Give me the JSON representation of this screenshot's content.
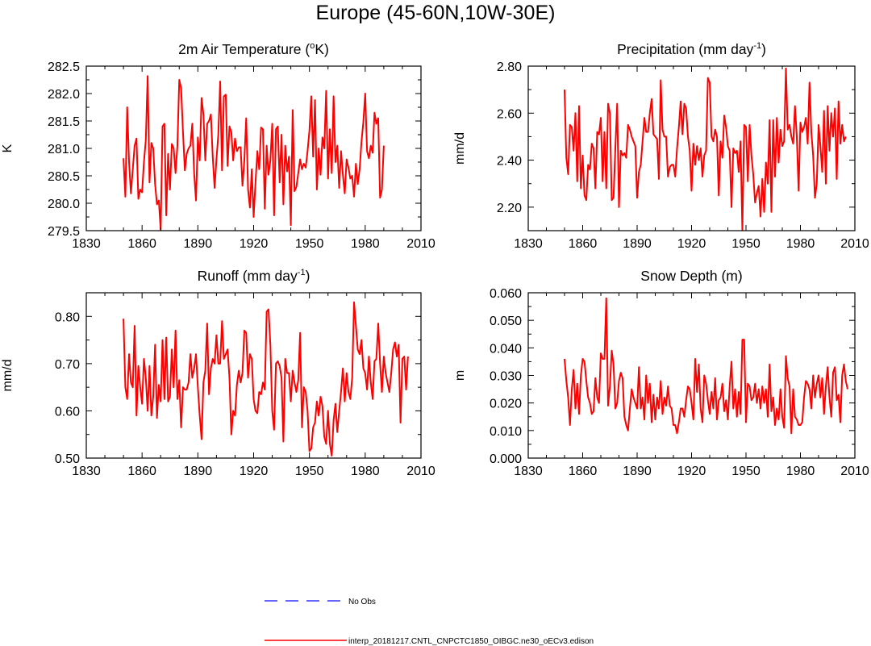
{
  "figure_title": "Europe (45-60N,10W-30E)",
  "chart_data": [
    {
      "type": "line",
      "title": "2m Air Temperature (°K)",
      "title_parts": {
        "pre": "2m Air Temperature (",
        "sup": "o",
        "post": "K)"
      },
      "xlabel": "",
      "ylabel": "K",
      "xlim": [
        1830,
        2010
      ],
      "ylim": [
        279.5,
        282.5
      ],
      "xticks": [
        1830,
        1860,
        1890,
        1920,
        1950,
        1980,
        2010
      ],
      "xtick_labels": [
        "1830",
        "1860",
        "1890",
        "1920",
        "1950",
        "1980",
        "2010"
      ],
      "yticks": [
        279.5,
        280.0,
        280.5,
        281.0,
        281.5,
        282.0,
        282.5
      ],
      "ytick_labels": [
        "279.5",
        "280.0",
        "280.5",
        "281.0",
        "281.5",
        "282.0",
        "282.5"
      ],
      "grid": false,
      "series": [
        {
          "name": "interp_20181217.CNTL_CNPCTC1850_OIBGC.ne30_oECv3.edison",
          "color": "#ff0000",
          "x_start": 1850,
          "x_step": 1,
          "values": [
            280.82,
            280.12,
            281.75,
            280.75,
            280.18,
            280.62,
            281.05,
            281.18,
            280.08,
            280.25,
            280.2,
            280.75,
            281.15,
            282.32,
            280.38,
            281.1,
            281.0,
            280.35,
            279.98,
            280.05,
            279.52,
            281.4,
            281.45,
            279.78,
            280.9,
            280.25,
            281.08,
            281.0,
            280.55,
            281.05,
            282.25,
            282.1,
            281.3,
            280.6,
            280.9,
            281.0,
            281.05,
            281.45,
            280.55,
            280.05,
            281.2,
            280.78,
            281.92,
            281.62,
            280.78,
            281.45,
            281.5,
            281.62,
            280.85,
            280.28,
            280.8,
            281.25,
            282.22,
            280.6,
            281.95,
            281.98,
            280.68,
            281.4,
            281.3,
            280.78,
            281.18,
            280.95,
            281.02,
            281.02,
            280.32,
            280.78,
            281.55,
            280.25,
            279.92,
            280.62,
            279.75,
            280.38,
            280.95,
            280.62,
            281.38,
            281.35,
            279.9,
            281.05,
            280.52,
            280.78,
            281.45,
            279.78,
            281.35,
            281.4,
            280.38,
            281.25,
            279.98,
            281.05,
            280.58,
            280.85,
            279.6,
            281.7,
            280.22,
            280.3,
            280.55,
            280.8,
            280.62,
            280.72,
            280.65,
            280.95,
            281.32,
            281.95,
            280.85,
            281.88,
            280.25,
            281.0,
            280.52,
            281.2,
            281.0,
            282.05,
            280.45,
            281.35,
            280.55,
            281.95,
            280.75,
            281.05,
            280.28,
            280.95,
            280.52,
            280.18,
            280.8,
            280.65,
            280.45,
            280.5,
            280.12,
            280.72,
            280.35,
            280.62,
            281.12,
            281.48,
            282.0,
            280.95,
            280.82,
            281.05,
            280.92,
            281.65,
            281.45,
            281.55,
            280.1,
            280.25,
            281.05
          ]
        }
      ]
    },
    {
      "type": "line",
      "title": "Precipitation (mm day⁻¹)",
      "title_parts": {
        "pre": "Precipitation (mm day",
        "sup": "-1",
        "post": ")"
      },
      "xlabel": "",
      "ylabel": "mm/d",
      "xlim": [
        1830,
        2010
      ],
      "ylim": [
        2.1,
        2.8
      ],
      "xticks": [
        1830,
        1860,
        1890,
        1920,
        1950,
        1980,
        2010
      ],
      "xtick_labels": [
        "1830",
        "1860",
        "1890",
        "1920",
        "1950",
        "1980",
        "2010"
      ],
      "yticks": [
        2.2,
        2.4,
        2.6,
        2.8
      ],
      "ytick_labels": [
        "2.20",
        "2.40",
        "2.60",
        "2.80"
      ],
      "grid": false,
      "series": [
        {
          "name": "interp_20181217.CNTL_CNPCTC1850_OIBGC.ne30_oECv3.edison",
          "color": "#ff0000",
          "x_start": 1850,
          "x_step": 1,
          "values": [
            2.7,
            2.41,
            2.34,
            2.55,
            2.54,
            2.44,
            2.6,
            2.31,
            2.63,
            2.28,
            2.42,
            2.25,
            2.23,
            2.38,
            2.36,
            2.47,
            2.45,
            2.28,
            2.52,
            2.51,
            2.58,
            2.31,
            2.52,
            2.28,
            2.64,
            2.6,
            2.23,
            2.24,
            2.45,
            2.64,
            2.2,
            2.44,
            2.42,
            2.43,
            2.41,
            2.55,
            2.53,
            2.5,
            2.48,
            2.46,
            2.24,
            2.35,
            2.38,
            2.48,
            2.58,
            2.52,
            2.52,
            2.6,
            2.66,
            2.51,
            2.5,
            2.49,
            2.32,
            2.74,
            2.53,
            2.5,
            2.5,
            2.33,
            2.37,
            2.38,
            2.38,
            2.33,
            2.45,
            2.54,
            2.65,
            2.51,
            2.64,
            2.62,
            2.5,
            2.44,
            2.27,
            2.47,
            2.38,
            2.46,
            2.4,
            2.45,
            2.33,
            2.42,
            2.44,
            2.75,
            2.73,
            2.5,
            2.48,
            2.53,
            2.5,
            2.25,
            2.48,
            2.41,
            2.59,
            2.54,
            2.46,
            2.44,
            2.2,
            2.45,
            2.43,
            2.44,
            2.35,
            2.48,
            2.1,
            2.55,
            2.54,
            2.31,
            2.55,
            2.42,
            2.34,
            2.22,
            2.26,
            2.29,
            2.16,
            2.32,
            2.18,
            2.39,
            2.3,
            2.57,
            2.18,
            2.57,
            2.33,
            2.58,
            2.39,
            2.53,
            2.46,
            2.48,
            2.79,
            2.53,
            2.55,
            2.5,
            2.47,
            2.63,
            2.5,
            2.27,
            2.56,
            2.52,
            2.54,
            2.58,
            2.47,
            2.73,
            2.52,
            2.42,
            2.24,
            2.3,
            2.55,
            2.46,
            2.35,
            2.61,
            2.3,
            2.63,
            2.44,
            2.6,
            2.5,
            2.62,
            2.32,
            2.65,
            2.47,
            2.55,
            2.48,
            2.5
          ]
        }
      ]
    },
    {
      "type": "line",
      "title": "Runoff (mm day⁻¹)",
      "title_parts": {
        "pre": "Runoff (mm day",
        "sup": "-1",
        "post": ")"
      },
      "xlabel": "",
      "ylabel": "mm/d",
      "xlim": [
        1830,
        2010
      ],
      "ylim": [
        0.5,
        0.85
      ],
      "xticks": [
        1830,
        1860,
        1890,
        1920,
        1950,
        1980,
        2010
      ],
      "xtick_labels": [
        "1830",
        "1860",
        "1890",
        "1920",
        "1950",
        "1980",
        "2010"
      ],
      "yticks": [
        0.5,
        0.6,
        0.7,
        0.8
      ],
      "ytick_labels": [
        "0.50",
        "0.60",
        "0.70",
        "0.80"
      ],
      "grid": false,
      "series": [
        {
          "name": "interp_20181217.CNTL_CNPCTC1850_OIBGC.ne30_oECv3.edison",
          "color": "#ff0000",
          "x_start": 1850,
          "x_step": 1,
          "values": [
            0.795,
            0.65,
            0.625,
            0.72,
            0.66,
            0.65,
            0.78,
            0.59,
            0.695,
            0.65,
            0.615,
            0.71,
            0.67,
            0.6,
            0.695,
            0.59,
            0.63,
            0.74,
            0.585,
            0.655,
            0.62,
            0.75,
            0.625,
            0.755,
            0.62,
            0.63,
            0.73,
            0.65,
            0.77,
            0.625,
            0.665,
            0.565,
            0.65,
            0.645,
            0.645,
            0.66,
            0.72,
            0.67,
            0.69,
            0.72,
            0.65,
            0.59,
            0.54,
            0.66,
            0.685,
            0.785,
            0.635,
            0.69,
            0.71,
            0.7,
            0.76,
            0.7,
            0.7,
            0.79,
            0.71,
            0.72,
            0.73,
            0.67,
            0.55,
            0.6,
            0.59,
            0.655,
            0.685,
            0.66,
            0.68,
            0.77,
            0.765,
            0.67,
            0.72,
            0.71,
            0.625,
            0.6,
            0.595,
            0.64,
            0.635,
            0.66,
            0.645,
            0.81,
            0.815,
            0.74,
            0.6,
            0.56,
            0.7,
            0.705,
            0.695,
            0.67,
            0.535,
            0.71,
            0.68,
            0.68,
            0.62,
            0.685,
            0.66,
            0.64,
            0.665,
            0.765,
            0.565,
            0.65,
            0.64,
            0.6,
            0.515,
            0.52,
            0.565,
            0.575,
            0.62,
            0.59,
            0.63,
            0.61,
            0.545,
            0.53,
            0.6,
            0.53,
            0.505,
            0.58,
            0.615,
            0.555,
            0.6,
            0.64,
            0.69,
            0.62,
            0.68,
            0.64,
            0.625,
            0.67,
            0.83,
            0.78,
            0.73,
            0.72,
            0.75,
            0.69,
            0.68,
            0.645,
            0.715,
            0.66,
            0.625,
            0.705,
            0.71,
            0.785,
            0.7,
            0.64,
            0.715,
            0.68,
            0.66,
            0.64,
            0.68,
            0.73,
            0.745,
            0.715,
            0.74,
            0.575,
            0.71,
            0.715,
            0.645,
            0.715
          ]
        }
      ]
    },
    {
      "type": "line",
      "title": "Snow Depth (m)",
      "title_parts": {
        "pre": "Snow Depth (m)",
        "sup": "",
        "post": ""
      },
      "xlabel": "",
      "ylabel": "m",
      "xlim": [
        1830,
        2010
      ],
      "ylim": [
        0.0,
        0.06
      ],
      "xticks": [
        1830,
        1860,
        1890,
        1920,
        1950,
        1980,
        2010
      ],
      "xtick_labels": [
        "1830",
        "1860",
        "1890",
        "1920",
        "1950",
        "1980",
        "2010"
      ],
      "yticks": [
        0.0,
        0.01,
        0.02,
        0.03,
        0.04,
        0.05,
        0.06
      ],
      "ytick_labels": [
        "0.000",
        "0.010",
        "0.020",
        "0.030",
        "0.040",
        "0.050",
        "0.060"
      ],
      "grid": false,
      "series": [
        {
          "name": "interp_20181217.CNTL_CNPCTC1850_OIBGC.ne30_oECv3.edison",
          "color": "#ff0000",
          "x_start": 1850,
          "x_step": 1,
          "values": [
            0.036,
            0.028,
            0.022,
            0.012,
            0.025,
            0.032,
            0.018,
            0.027,
            0.016,
            0.03,
            0.036,
            0.035,
            0.028,
            0.022,
            0.02,
            0.016,
            0.017,
            0.029,
            0.022,
            0.02,
            0.038,
            0.036,
            0.036,
            0.058,
            0.019,
            0.026,
            0.039,
            0.034,
            0.018,
            0.02,
            0.028,
            0.031,
            0.029,
            0.015,
            0.012,
            0.01,
            0.018,
            0.025,
            0.022,
            0.02,
            0.018,
            0.033,
            0.018,
            0.022,
            0.014,
            0.03,
            0.02,
            0.027,
            0.013,
            0.023,
            0.014,
            0.022,
            0.018,
            0.028,
            0.016,
            0.022,
            0.019,
            0.026,
            0.019,
            0.018,
            0.012,
            0.012,
            0.009,
            0.013,
            0.018,
            0.018,
            0.015,
            0.021,
            0.026,
            0.025,
            0.02,
            0.014,
            0.036,
            0.024,
            0.034,
            0.018,
            0.013,
            0.03,
            0.027,
            0.021,
            0.016,
            0.024,
            0.018,
            0.029,
            0.014,
            0.021,
            0.022,
            0.027,
            0.017,
            0.021,
            0.014,
            0.026,
            0.035,
            0.018,
            0.025,
            0.015,
            0.024,
            0.016,
            0.043,
            0.043,
            0.013,
            0.027,
            0.026,
            0.021,
            0.022,
            0.027,
            0.02,
            0.025,
            0.018,
            0.026,
            0.02,
            0.025,
            0.015,
            0.034,
            0.017,
            0.022,
            0.012,
            0.018,
            0.014,
            0.025,
            0.015,
            0.011,
            0.037,
            0.029,
            0.026,
            0.009,
            0.025,
            0.015,
            0.014,
            0.012,
            0.012,
            0.013,
            0.022,
            0.028,
            0.027,
            0.025,
            0.018,
            0.03,
            0.022,
            0.027,
            0.03,
            0.022,
            0.029,
            0.016,
            0.026,
            0.033,
            0.022,
            0.015,
            0.031,
            0.033,
            0.021,
            0.023,
            0.013,
            0.03,
            0.034,
            0.028,
            0.025
          ]
        }
      ]
    }
  ],
  "legend": {
    "position": "bottom-center",
    "entries": [
      {
        "label": "No Obs",
        "color": "#3535ff",
        "style": "dashed"
      },
      {
        "label": "interp_20181217.CNTL_CNPCTC1850_OIBGC.ne30_oECv3.edison",
        "color": "#ff0000",
        "style": "solid"
      }
    ]
  }
}
